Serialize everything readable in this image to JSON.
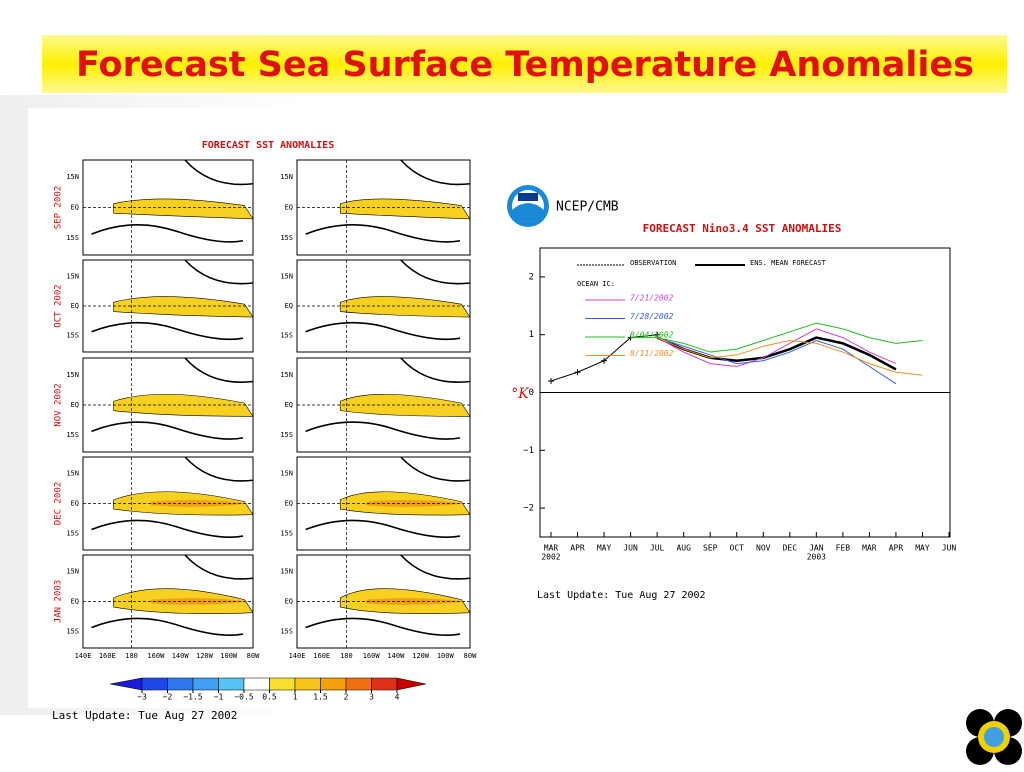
{
  "title": "Forecast Sea Surface Temperature Anomalies",
  "maps": {
    "title": "FORECAST SST ANOMALIES",
    "months": [
      "SEP 2002",
      "OCT 2002",
      "NOV 2002",
      "DEC 2002",
      "JAN 2003"
    ],
    "lat_labels": [
      "15N",
      "EQ",
      "15S"
    ],
    "lon_labels": [
      "140E",
      "160E",
      "180",
      "160W",
      "140W",
      "120W",
      "100W",
      "80W"
    ],
    "colorbar_ticks": [
      {
        "value": -3,
        "label": "−3"
      },
      {
        "value": -2,
        "label": "−2"
      },
      {
        "value": -1.5,
        "label": "−1.5"
      },
      {
        "value": -1,
        "label": "−1"
      },
      {
        "value": -0.5,
        "label": "−0.5"
      },
      0.5,
      1,
      1.5,
      2,
      3,
      4
    ],
    "colorbar_colors": [
      "#1a1ad8",
      "#2048e8",
      "#2f78f0",
      "#40a0f4",
      "#58c4f4",
      "#ffffff",
      "#f8e030",
      "#f8c418",
      "#f4a008",
      "#f07010",
      "#e03018",
      "#c80000"
    ],
    "last_update": "Last Update:  Tue Aug 27 2002"
  },
  "chart_data": {
    "type": "line",
    "header": "NCEP/CMB",
    "title": "FORECAST Nino3.4 SST ANOMALIES",
    "y_label": "°K",
    "legend_observation": "OBSERVATION",
    "legend_mean": "ENS. MEAN FORECAST",
    "legend_ic": "OCEAN IC:",
    "categories": [
      "MAR",
      "APR",
      "MAY",
      "JUN",
      "JUL",
      "AUG",
      "SEP",
      "OCT",
      "NOV",
      "DEC",
      "JAN",
      "FEB",
      "MAR",
      "APR",
      "MAY",
      "JUN"
    ],
    "category_years": [
      "2002",
      null,
      null,
      null,
      null,
      null,
      null,
      null,
      null,
      null,
      "2003",
      null,
      null,
      null,
      null,
      null
    ],
    "ylim": [
      -2.5,
      2.5
    ],
    "yticks": [
      {
        "value": -2,
        "label": "−2"
      },
      {
        "value": -1,
        "label": "−1"
      },
      0,
      1,
      2
    ],
    "series": [
      {
        "name": "OBSERVATION",
        "color": "#000000",
        "values": [
          0.2,
          0.35,
          0.55,
          0.95,
          1.0,
          null,
          null,
          null,
          null,
          null,
          null,
          null,
          null,
          null,
          null,
          null
        ]
      },
      {
        "name": "ENS. MEAN FORECAST",
        "color": "#000000",
        "values": [
          null,
          null,
          null,
          null,
          0.95,
          0.75,
          0.6,
          0.55,
          0.6,
          0.75,
          0.95,
          0.85,
          0.65,
          0.4,
          null,
          null
        ]
      },
      {
        "name": "7/21/2002",
        "color": "#d040d0",
        "values": [
          null,
          null,
          null,
          null,
          0.95,
          0.7,
          0.5,
          0.45,
          0.6,
          0.85,
          1.1,
          0.95,
          0.7,
          0.5,
          null,
          null
        ]
      },
      {
        "name": "7/28/2002",
        "color": "#3060e0",
        "values": [
          null,
          null,
          null,
          null,
          0.95,
          0.8,
          0.65,
          0.5,
          0.55,
          0.7,
          0.9,
          0.75,
          0.45,
          0.15,
          null,
          null
        ]
      },
      {
        "name": "8/04/2002",
        "color": "#20c020",
        "values": [
          null,
          null,
          null,
          0.95,
          0.95,
          0.85,
          0.7,
          0.75,
          0.9,
          1.05,
          1.2,
          1.1,
          0.95,
          0.85,
          0.9,
          null
        ]
      },
      {
        "name": "8/11/2002",
        "color": "#f09020",
        "values": [
          null,
          null,
          null,
          null,
          0.95,
          0.75,
          0.6,
          0.65,
          0.8,
          0.9,
          0.85,
          0.7,
          0.5,
          0.35,
          0.3,
          null
        ]
      }
    ],
    "last_update": "Last Update: Tue Aug 27 2002"
  }
}
